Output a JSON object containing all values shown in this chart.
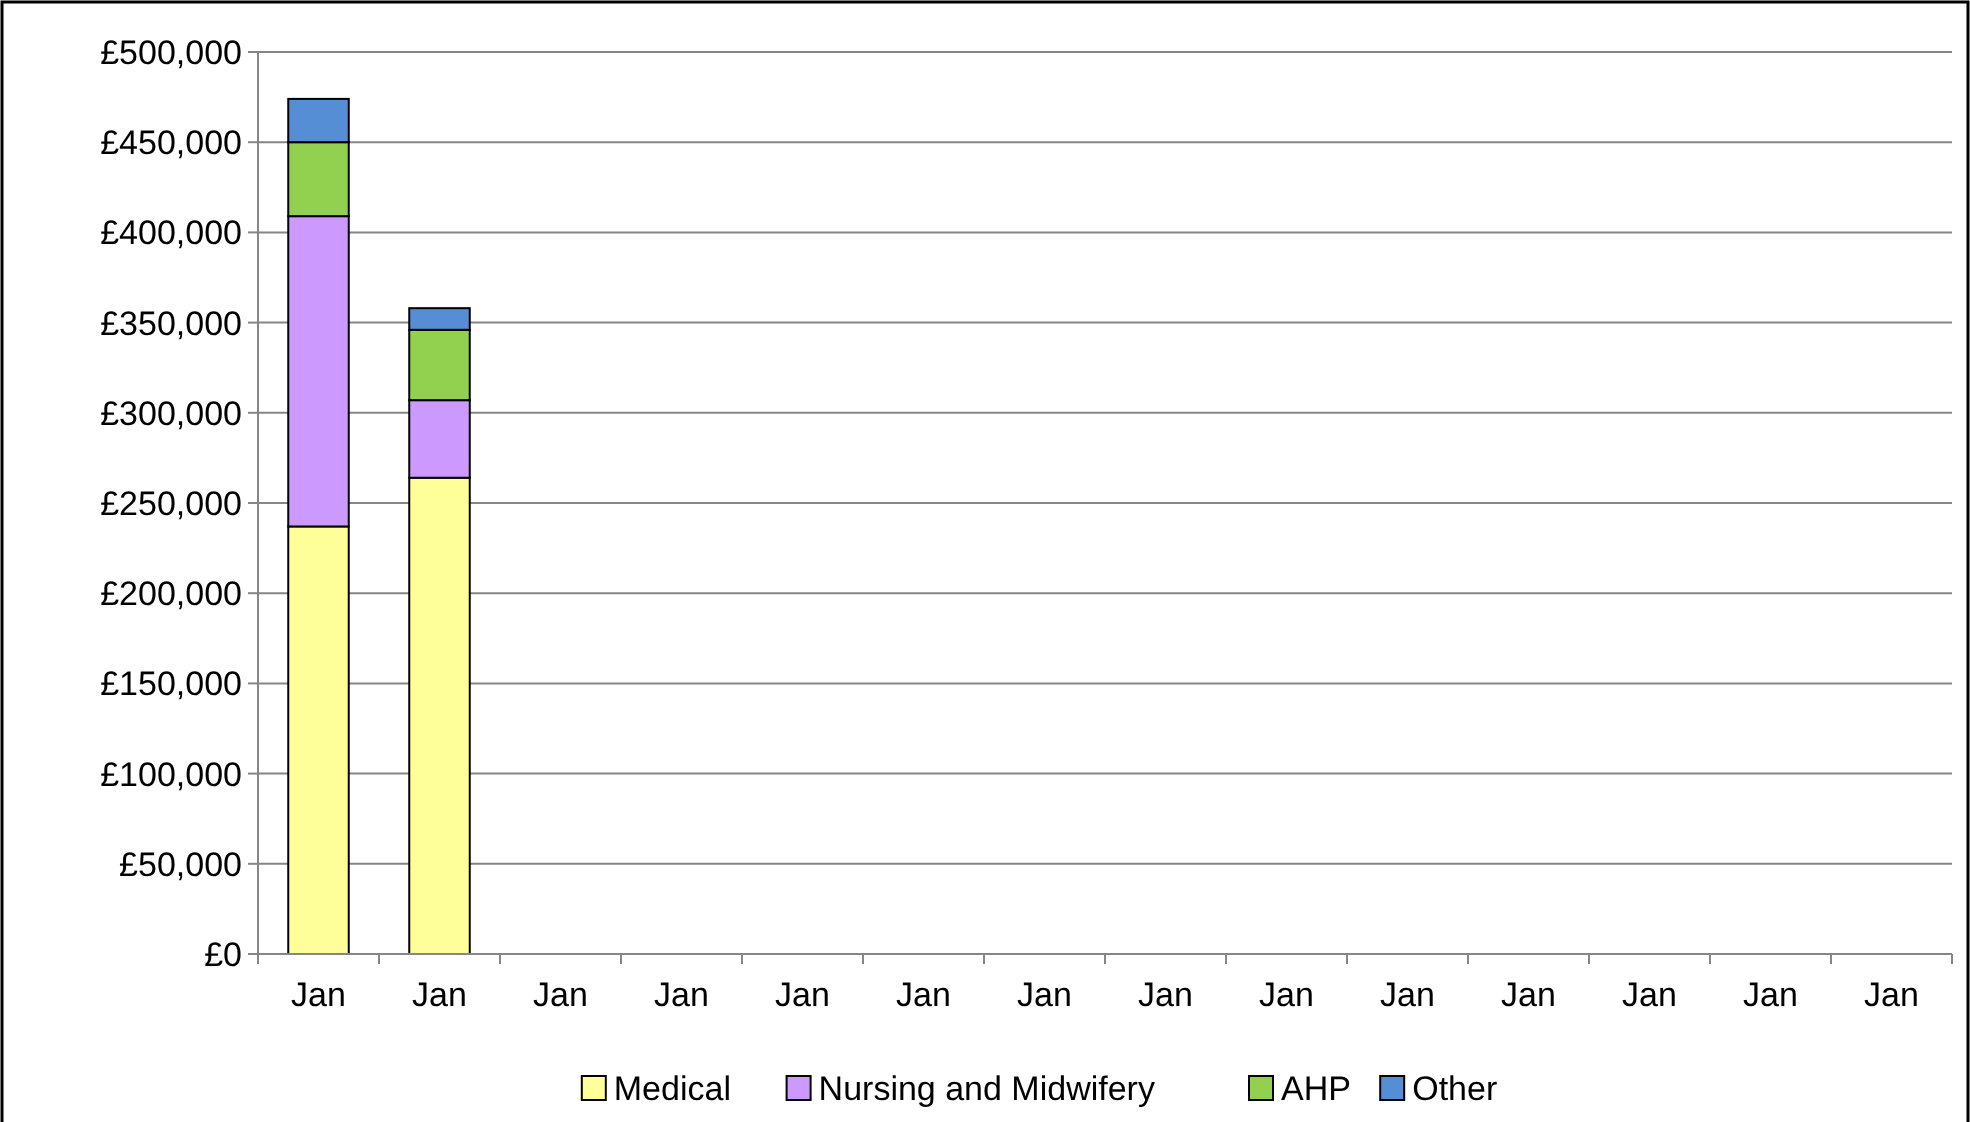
{
  "chart_data": {
    "type": "bar",
    "stacked": true,
    "categories": [
      "Jan",
      "Jan",
      "Jan",
      "Jan",
      "Jan",
      "Jan",
      "Jan",
      "Jan",
      "Jan",
      "Jan",
      "Jan",
      "Jan",
      "Jan",
      "Jan"
    ],
    "series": [
      {
        "name": "Medical",
        "color": "#ffff99",
        "values": [
          237000,
          264000,
          null,
          null,
          null,
          null,
          null,
          null,
          null,
          null,
          null,
          null,
          null,
          null
        ]
      },
      {
        "name": "Nursing and Midwifery",
        "color": "#cc99ff",
        "values": [
          172000,
          43000,
          null,
          null,
          null,
          null,
          null,
          null,
          null,
          null,
          null,
          null,
          null,
          null
        ]
      },
      {
        "name": "AHP",
        "color": "#92d050",
        "values": [
          41000,
          39000,
          null,
          null,
          null,
          null,
          null,
          null,
          null,
          null,
          null,
          null,
          null,
          null
        ]
      },
      {
        "name": "Other",
        "color": "#558ed5",
        "values": [
          24000,
          12000,
          null,
          null,
          null,
          null,
          null,
          null,
          null,
          null,
          null,
          null,
          null,
          null
        ]
      }
    ],
    "ylim": [
      0,
      500000
    ],
    "yticks": [
      {
        "value": 0,
        "label": "£0"
      },
      {
        "value": 50000,
        "label": "£50,000"
      },
      {
        "value": 100000,
        "label": "£100,000"
      },
      {
        "value": 150000,
        "label": "£150,000"
      },
      {
        "value": 200000,
        "label": "£200,000"
      },
      {
        "value": 250000,
        "label": "£250,000"
      },
      {
        "value": 300000,
        "label": "£300,000"
      },
      {
        "value": 350000,
        "label": "£350,000"
      },
      {
        "value": 400000,
        "label": "£400,000"
      },
      {
        "value": 450000,
        "label": "£450,000"
      },
      {
        "value": 500000,
        "label": "£500,000"
      }
    ],
    "grid": "y",
    "legend": "bottom"
  }
}
